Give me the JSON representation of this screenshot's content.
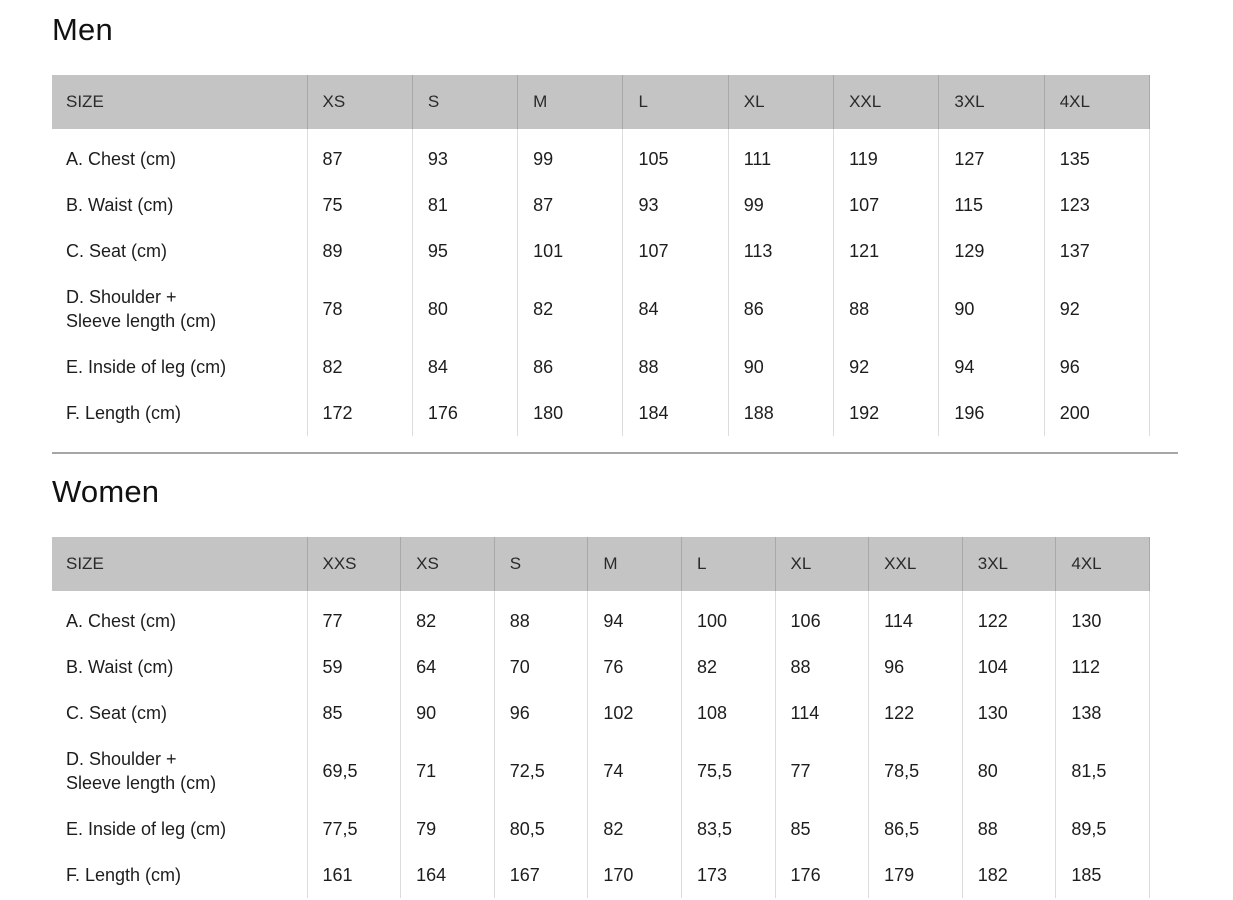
{
  "page": {
    "background": "#ffffff",
    "text_color": "#1d1d1d",
    "header_bg": "#c4c4c4",
    "header_divider_color": "#a8a8a8",
    "body_divider_color": "#dcdcdc",
    "section_divider_color": "#a6a6a6"
  },
  "tables": [
    {
      "title": "Men",
      "size_header": "SIZE",
      "columns": [
        "XS",
        "S",
        "M",
        "L",
        "XL",
        "XXL",
        "3XL",
        "4XL"
      ],
      "rows": [
        {
          "label": "A. Chest (cm)",
          "values": [
            "87",
            "93",
            "99",
            "105",
            "111",
            "119",
            "127",
            "135"
          ]
        },
        {
          "label": "B. Waist (cm)",
          "values": [
            "75",
            "81",
            "87",
            "93",
            "99",
            "107",
            "115",
            "123"
          ]
        },
        {
          "label": "C. Seat (cm)",
          "values": [
            "89",
            "95",
            "101",
            "107",
            "113",
            "121",
            "129",
            "137"
          ]
        },
        {
          "label": "D. Shoulder +",
          "label2": "Sleeve length (cm)",
          "values": [
            "78",
            "80",
            "82",
            "84",
            "86",
            "88",
            "90",
            "92"
          ]
        },
        {
          "label": "E. Inside of leg (cm)",
          "values": [
            "82",
            "84",
            "86",
            "88",
            "90",
            "92",
            "94",
            "96"
          ]
        },
        {
          "label": "F. Length (cm)",
          "values": [
            "172",
            "176",
            "180",
            "184",
            "188",
            "192",
            "196",
            "200"
          ]
        }
      ]
    },
    {
      "title": "Women",
      "size_header": "SIZE",
      "columns": [
        "XXS",
        "XS",
        "S",
        "M",
        "L",
        "XL",
        "XXL",
        "3XL",
        "4XL"
      ],
      "rows": [
        {
          "label": "A. Chest (cm)",
          "values": [
            "77",
            "82",
            "88",
            "94",
            "100",
            "106",
            "114",
            "122",
            "130"
          ]
        },
        {
          "label": "B. Waist (cm)",
          "values": [
            "59",
            "64",
            "70",
            "76",
            "82",
            "88",
            "96",
            "104",
            "112"
          ]
        },
        {
          "label": "C. Seat (cm)",
          "values": [
            "85",
            "90",
            "96",
            "102",
            "108",
            "114",
            "122",
            "130",
            "138"
          ]
        },
        {
          "label": "D. Shoulder +",
          "label2": "Sleeve length (cm)",
          "values": [
            "69,5",
            "71",
            "72,5",
            "74",
            "75,5",
            "77",
            "78,5",
            "80",
            "81,5"
          ]
        },
        {
          "label": "E. Inside of leg (cm)",
          "values": [
            "77,5",
            "79",
            "80,5",
            "82",
            "83,5",
            "85",
            "86,5",
            "88",
            "89,5"
          ]
        },
        {
          "label": "F. Length (cm)",
          "values": [
            "161",
            "164",
            "167",
            "170",
            "173",
            "176",
            "179",
            "182",
            "185"
          ]
        }
      ]
    }
  ]
}
